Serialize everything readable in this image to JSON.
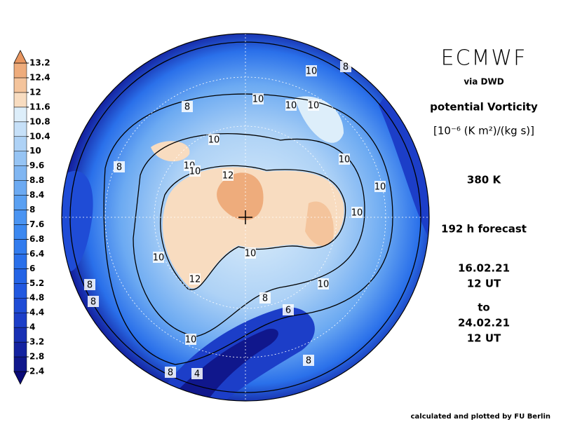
{
  "header": {
    "title": "ECMWF",
    "source": "via DWD",
    "quantity": "potential Vorticity",
    "unit": "[10⁻⁶ (K m²)/(kg s)]",
    "level": "380 K",
    "forecast": "192 h forecast",
    "from_date": "16.02.21",
    "from_time": "12 UT",
    "to": "to",
    "to_date": "24.02.21",
    "to_time": "12 UT"
  },
  "footer": "calculated and plotted by FU Berlin",
  "colorbar": {
    "ticks": [
      2.4,
      2.8,
      3.2,
      4,
      4.4,
      4.8,
      5.2,
      6,
      6.4,
      6.8,
      7.6,
      8,
      8.4,
      8.8,
      9.6,
      10,
      10.4,
      10.8,
      11.6,
      12,
      12.4,
      13.2
    ],
    "colors": [
      "#0a0a78",
      "#10178c",
      "#1422a0",
      "#1830b4",
      "#1c3ec8",
      "#1f4cd6",
      "#2158e0",
      "#2464e6",
      "#2a70ea",
      "#327cee",
      "#3c88f0",
      "#4a94f2",
      "#5aa0f2",
      "#6caaf2",
      "#80b6f2",
      "#96c4f4",
      "#aed2f6",
      "#c6e0f8",
      "#ddeefa",
      "#f8dcc0",
      "#f4c49c",
      "#eeac7c",
      "#e89660"
    ]
  },
  "contour_labels": [
    "8",
    "10",
    "10",
    "10",
    "8",
    "10",
    "10",
    "10",
    "10",
    "8",
    "12",
    "10",
    "10",
    "10",
    "10",
    "8",
    "10",
    "12",
    "8",
    "10",
    "8",
    "6",
    "10",
    "8",
    "8",
    "4"
  ]
}
